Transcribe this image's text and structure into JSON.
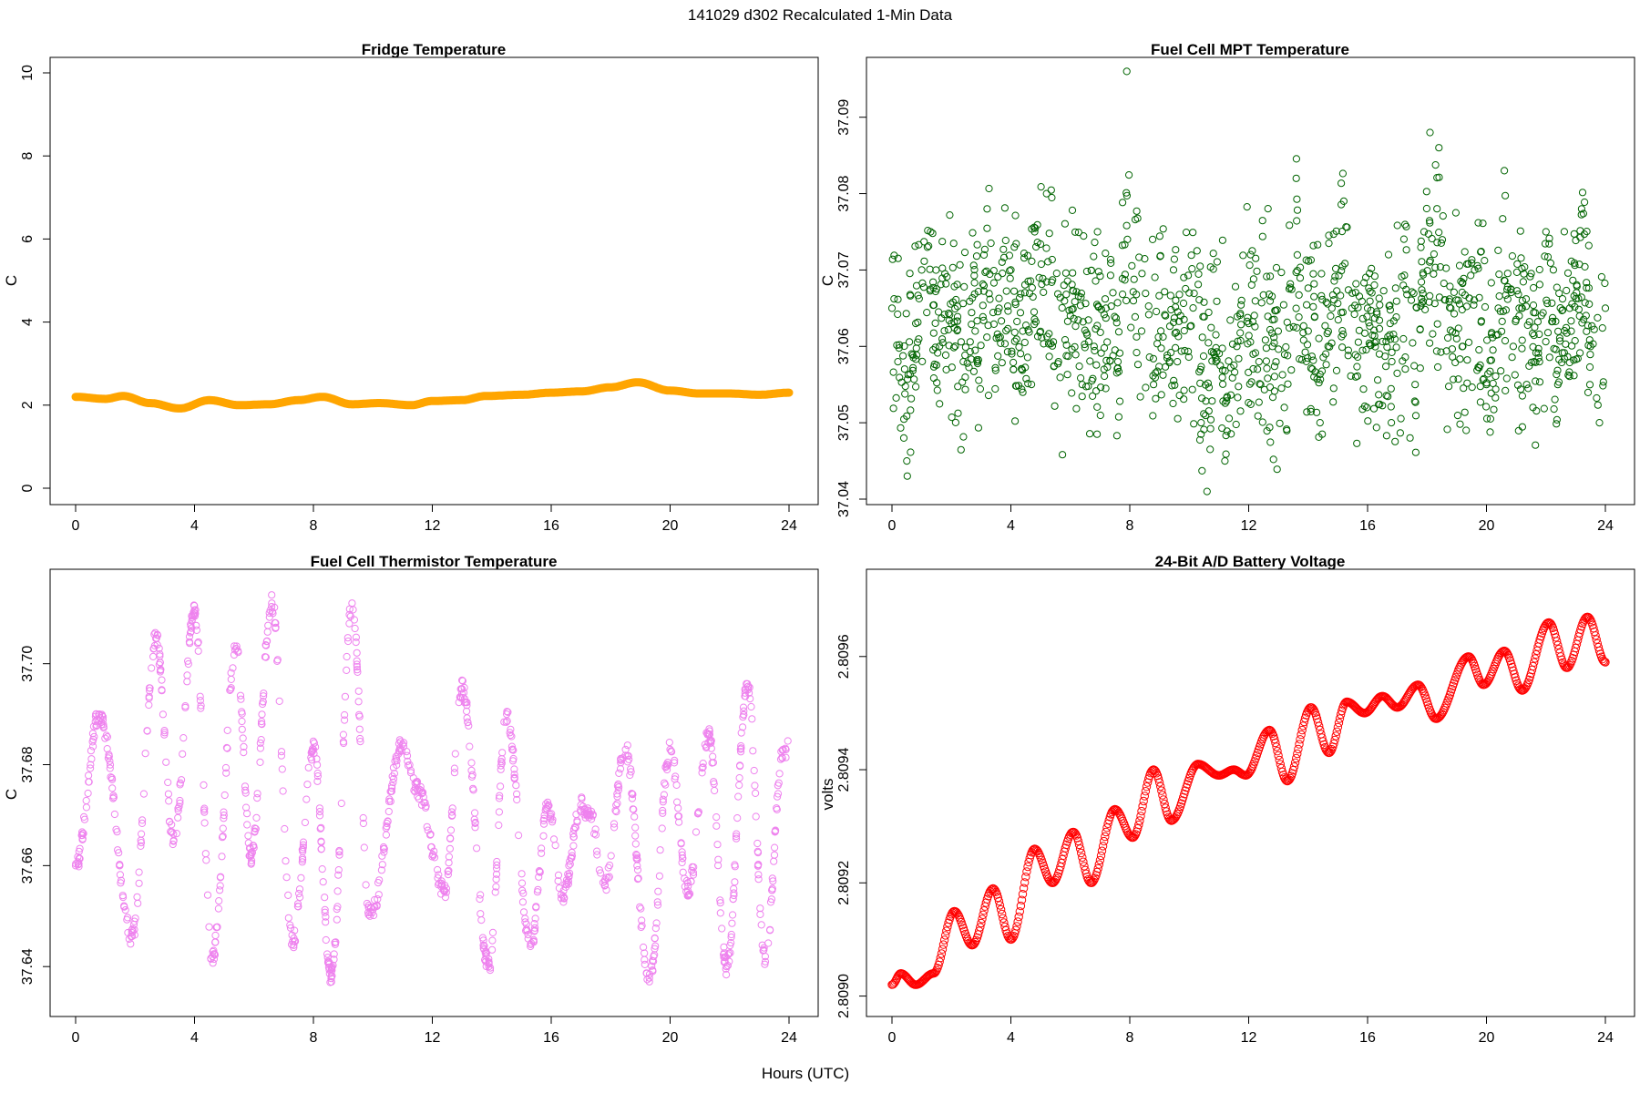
{
  "page": {
    "title": "141029   d302   Recalculated 1-Min Data",
    "shared_xlabel": "Hours (UTC)"
  },
  "colors": {
    "fridge": "#FFA500",
    "mpt": "#006400",
    "thermistor": "#EE82EE",
    "battery": "#FF0000"
  },
  "chart_data": [
    {
      "type": "line",
      "title": "Fridge Temperature",
      "xlabel": "",
      "ylabel": "C",
      "xlim": [
        0,
        24
      ],
      "ylim": [
        0,
        10
      ],
      "xticks": [
        "0",
        "4",
        "8",
        "12",
        "16",
        "20",
        "24"
      ],
      "yticks": [
        "0",
        "2",
        "4",
        "6",
        "8",
        "10"
      ],
      "marker": "thick-line",
      "color": "#FFA500",
      "series": [
        {
          "x": [
            0,
            1,
            1.6,
            2.5,
            3.5,
            4.5,
            5.5,
            6.5,
            7.5,
            8.3,
            9.3,
            10.2,
            11.3,
            12,
            13,
            13.8,
            15,
            16,
            17,
            18,
            18.9,
            20,
            21,
            22,
            23,
            24
          ],
          "y": [
            2.2,
            2.15,
            2.22,
            2.05,
            1.92,
            2.12,
            2.0,
            2.02,
            2.12,
            2.2,
            2.02,
            2.05,
            2.0,
            2.1,
            2.12,
            2.22,
            2.25,
            2.3,
            2.33,
            2.43,
            2.55,
            2.35,
            2.28,
            2.28,
            2.25,
            2.3
          ]
        }
      ]
    },
    {
      "type": "scatter",
      "title": "Fuel Cell MPT Temperature",
      "xlabel": "",
      "ylabel": "C",
      "xlim": [
        0,
        24
      ],
      "ylim": [
        37.04,
        37.097
      ],
      "xticks": [
        "0",
        "4",
        "8",
        "12",
        "16",
        "20",
        "24"
      ],
      "yticks": [
        "37.04",
        "37.05",
        "37.06",
        "37.07",
        "37.08",
        "37.09"
      ],
      "marker": "open-circle",
      "color": "#006400",
      "series": [
        {
          "x": [
            0,
            0.2,
            0.4,
            0.5,
            0.8,
            1.0,
            1.3,
            1.6,
            2.0,
            2.4,
            2.8,
            3.2,
            3.6,
            4.0,
            4.4,
            4.8,
            5.2,
            5.6,
            6.0,
            6.4,
            6.8,
            7.2,
            7.6,
            7.9,
            8.4,
            8.8,
            9.2,
            9.6,
            10.0,
            10.4,
            10.6,
            10.9,
            11.2,
            11.6,
            12.0,
            12.4,
            12.8,
            13.2,
            13.6,
            14.0,
            14.4,
            14.8,
            15.2,
            15.6,
            16.0,
            16.4,
            16.8,
            17.2,
            17.6,
            17.9,
            18.1,
            18.4,
            18.8,
            19.2,
            19.6,
            20.0,
            20.4,
            20.6,
            20.9,
            21.2,
            21.6,
            22.0,
            22.4,
            22.8,
            23.2,
            23.5,
            23.8,
            24.0
          ],
          "y": [
            37.065,
            37.058,
            37.048,
            37.045,
            37.063,
            37.07,
            37.075,
            37.06,
            37.063,
            37.058,
            37.062,
            37.078,
            37.065,
            37.07,
            37.062,
            37.075,
            37.08,
            37.058,
            37.064,
            37.055,
            37.06,
            37.065,
            37.058,
            37.096,
            37.062,
            37.055,
            37.064,
            37.058,
            37.067,
            37.05,
            37.041,
            37.058,
            37.045,
            37.06,
            37.063,
            37.055,
            37.06,
            37.052,
            37.082,
            37.062,
            37.05,
            37.065,
            37.079,
            37.056,
            37.065,
            37.059,
            37.05,
            37.068,
            37.055,
            37.075,
            37.088,
            37.086,
            37.065,
            37.06,
            37.07,
            37.055,
            37.065,
            37.083,
            37.06,
            37.065,
            37.058,
            37.075,
            37.055,
            37.065,
            37.078,
            37.06,
            37.05,
            37.065
          ]
        }
      ]
    },
    {
      "type": "scatter",
      "title": "Fuel Cell Thermistor Temperature",
      "xlabel": "",
      "ylabel": "C",
      "xlim": [
        0,
        24
      ],
      "ylim": [
        37.633,
        37.716
      ],
      "xticks": [
        "0",
        "4",
        "8",
        "12",
        "16",
        "20",
        "24"
      ],
      "yticks": [
        "37.64",
        "37.66",
        "37.68",
        "37.70"
      ],
      "marker": "open-circle",
      "color": "#EE82EE",
      "series": [
        {
          "x": [
            0,
            0.8,
            1.9,
            2.7,
            3.3,
            4.0,
            4.6,
            5.4,
            5.9,
            6.6,
            7.3,
            8.0,
            8.6,
            9.3,
            9.9,
            11.0,
            11.5,
            12.4,
            13.0,
            13.9,
            14.5,
            15.3,
            15.9,
            16.4,
            17.0,
            17.3,
            17.8,
            18.5,
            19.3,
            20.0,
            20.6,
            21.3,
            21.9,
            22.6,
            23.2,
            23.8
          ],
          "y": [
            37.66,
            37.69,
            37.646,
            37.705,
            37.665,
            37.71,
            37.642,
            37.703,
            37.662,
            37.712,
            37.645,
            37.683,
            37.638,
            37.712,
            37.65,
            37.684,
            37.675,
            37.655,
            37.695,
            37.64,
            37.69,
            37.644,
            37.672,
            37.654,
            37.672,
            37.67,
            37.656,
            37.683,
            37.637,
            37.683,
            37.655,
            37.686,
            37.64,
            37.696,
            37.642,
            37.683
          ]
        }
      ]
    },
    {
      "type": "line",
      "title": "24-Bit A/D Battery Voltage",
      "xlabel": "",
      "ylabel": "volts",
      "xlim": [
        0,
        24
      ],
      "ylim": [
        2.80898,
        2.80973
      ],
      "xticks": [
        "0",
        "4",
        "8",
        "12",
        "16",
        "20",
        "24"
      ],
      "yticks": [
        "2.8090",
        "2.8092",
        "2.8094",
        "2.8096"
      ],
      "marker": "open-circle-dense",
      "color": "#FF0000",
      "series": [
        {
          "x": [
            0,
            0.3,
            0.8,
            1.4,
            2.1,
            2.7,
            3.4,
            4.0,
            4.8,
            5.4,
            6.1,
            6.7,
            7.5,
            8.1,
            8.8,
            9.4,
            10.3,
            11.0,
            11.5,
            11.9,
            12.7,
            13.3,
            14.1,
            14.7,
            15.3,
            15.9,
            16.5,
            17.0,
            17.7,
            18.3,
            19.4,
            19.9,
            20.6,
            21.2,
            22.1,
            22.7,
            23.4,
            24.0
          ],
          "y": [
            2.80902,
            2.80904,
            2.80902,
            2.80904,
            2.80915,
            2.80909,
            2.80919,
            2.8091,
            2.80926,
            2.8092,
            2.80929,
            2.8092,
            2.80933,
            2.80928,
            2.8094,
            2.80931,
            2.80941,
            2.80939,
            2.8094,
            2.80939,
            2.80947,
            2.80938,
            2.80951,
            2.80943,
            2.80952,
            2.8095,
            2.80953,
            2.80951,
            2.80955,
            2.80949,
            2.8096,
            2.80955,
            2.80961,
            2.80954,
            2.80966,
            2.80958,
            2.80967,
            2.80959
          ]
        }
      ]
    }
  ]
}
